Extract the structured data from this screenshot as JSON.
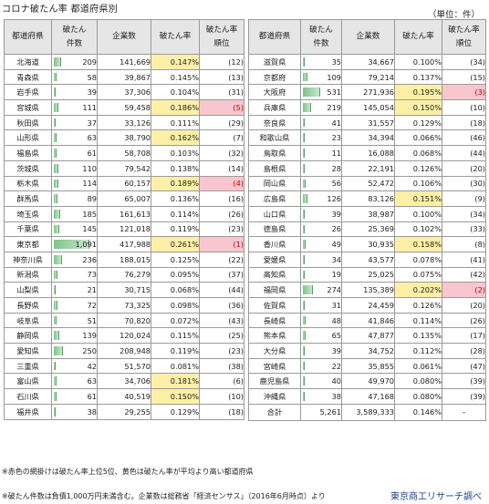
{
  "title": "コロナ破たん率 都道府県別",
  "unit": "（単位：件）",
  "headers": {
    "pref": "都道府県",
    "count_l1": "破たん",
    "count_l2": "件数",
    "companies": "企業数",
    "rate": "破たん率",
    "rank_l1": "破たん率",
    "rank_l2": "順位"
  },
  "colors": {
    "yellow": "#fdf0a6",
    "pink": "#f7c6cf",
    "bar": "#7cc487"
  },
  "left_rows": [
    {
      "pref": "北海道",
      "count": "209",
      "companies": "141,669",
      "rate": "0.147%",
      "rank": "(12)",
      "hl_rate": true,
      "hl_rank": false
    },
    {
      "pref": "青森県",
      "count": "58",
      "companies": "39,867",
      "rate": "0.145%",
      "rank": "(13)",
      "hl_rate": false,
      "hl_rank": false
    },
    {
      "pref": "岩手県",
      "count": "39",
      "companies": "37,306",
      "rate": "0.104%",
      "rank": "(31)",
      "hl_rate": false,
      "hl_rank": false
    },
    {
      "pref": "宮城県",
      "count": "111",
      "companies": "59,458",
      "rate": "0.186%",
      "rank": "(5)",
      "hl_rate": true,
      "hl_rank": true
    },
    {
      "pref": "秋田県",
      "count": "37",
      "companies": "33,126",
      "rate": "0.111%",
      "rank": "(29)",
      "hl_rate": false,
      "hl_rank": false
    },
    {
      "pref": "山形県",
      "count": "63",
      "companies": "38,790",
      "rate": "0.162%",
      "rank": "(7)",
      "hl_rate": true,
      "hl_rank": false
    },
    {
      "pref": "福島県",
      "count": "61",
      "companies": "58,708",
      "rate": "0.103%",
      "rank": "(32)",
      "hl_rate": false,
      "hl_rank": false
    },
    {
      "pref": "茨城県",
      "count": "110",
      "companies": "79,542",
      "rate": "0.138%",
      "rank": "(14)",
      "hl_rate": false,
      "hl_rank": false
    },
    {
      "pref": "栃木県",
      "count": "114",
      "companies": "60,157",
      "rate": "0.189%",
      "rank": "(4)",
      "hl_rate": true,
      "hl_rank": true
    },
    {
      "pref": "群馬県",
      "count": "89",
      "companies": "65,007",
      "rate": "0.136%",
      "rank": "(16)",
      "hl_rate": false,
      "hl_rank": false
    },
    {
      "pref": "埼玉県",
      "count": "185",
      "companies": "161,613",
      "rate": "0.114%",
      "rank": "(26)",
      "hl_rate": false,
      "hl_rank": false
    },
    {
      "pref": "千葉県",
      "count": "145",
      "companies": "121,018",
      "rate": "0.119%",
      "rank": "(23)",
      "hl_rate": false,
      "hl_rank": false
    },
    {
      "pref": "東京都",
      "count": "1,091",
      "companies": "417,988",
      "rate": "0.261%",
      "rank": "(1)",
      "hl_rate": true,
      "hl_rank": true
    },
    {
      "pref": "神奈川県",
      "count": "236",
      "companies": "188,015",
      "rate": "0.125%",
      "rank": "(22)",
      "hl_rate": false,
      "hl_rank": false
    },
    {
      "pref": "新潟県",
      "count": "73",
      "companies": "76,279",
      "rate": "0.095%",
      "rank": "(37)",
      "hl_rate": false,
      "hl_rank": false
    },
    {
      "pref": "山梨県",
      "count": "21",
      "companies": "30,715",
      "rate": "0.068%",
      "rank": "(44)",
      "hl_rate": false,
      "hl_rank": false
    },
    {
      "pref": "長野県",
      "count": "72",
      "companies": "73,325",
      "rate": "0.098%",
      "rank": "(36)",
      "hl_rate": false,
      "hl_rank": false
    },
    {
      "pref": "岐阜県",
      "count": "51",
      "companies": "70,820",
      "rate": "0.072%",
      "rank": "(43)",
      "hl_rate": false,
      "hl_rank": false
    },
    {
      "pref": "静岡県",
      "count": "139",
      "companies": "120,024",
      "rate": "0.115%",
      "rank": "(25)",
      "hl_rate": false,
      "hl_rank": false
    },
    {
      "pref": "愛知県",
      "count": "250",
      "companies": "208,948",
      "rate": "0.119%",
      "rank": "(23)",
      "hl_rate": false,
      "hl_rank": false
    },
    {
      "pref": "三重県",
      "count": "42",
      "companies": "51,570",
      "rate": "0.081%",
      "rank": "(38)",
      "hl_rate": false,
      "hl_rank": false
    },
    {
      "pref": "富山県",
      "count": "63",
      "companies": "34,706",
      "rate": "0.181%",
      "rank": "(6)",
      "hl_rate": true,
      "hl_rank": false
    },
    {
      "pref": "石川県",
      "count": "61",
      "companies": "40,519",
      "rate": "0.150%",
      "rank": "(10)",
      "hl_rate": true,
      "hl_rank": false
    },
    {
      "pref": "福井県",
      "count": "38",
      "companies": "29,255",
      "rate": "0.129%",
      "rank": "(18)",
      "hl_rate": false,
      "hl_rank": false
    }
  ],
  "right_rows": [
    {
      "pref": "滋賀県",
      "count": "35",
      "companies": "34,667",
      "rate": "0.100%",
      "rank": "(34)",
      "hl_rate": false,
      "hl_rank": false
    },
    {
      "pref": "京都府",
      "count": "109",
      "companies": "79,214",
      "rate": "0.137%",
      "rank": "(15)",
      "hl_rate": false,
      "hl_rank": false
    },
    {
      "pref": "大阪府",
      "count": "531",
      "companies": "271,936",
      "rate": "0.195%",
      "rank": "(3)",
      "hl_rate": true,
      "hl_rank": true
    },
    {
      "pref": "兵庫県",
      "count": "219",
      "companies": "145,054",
      "rate": "0.150%",
      "rank": "(10)",
      "hl_rate": true,
      "hl_rank": false
    },
    {
      "pref": "奈良県",
      "count": "41",
      "companies": "31,557",
      "rate": "0.129%",
      "rank": "(18)",
      "hl_rate": false,
      "hl_rank": false
    },
    {
      "pref": "和歌山県",
      "count": "23",
      "companies": "34,394",
      "rate": "0.066%",
      "rank": "(46)",
      "hl_rate": false,
      "hl_rank": false
    },
    {
      "pref": "鳥取県",
      "count": "11",
      "companies": "16,088",
      "rate": "0.068%",
      "rank": "(44)",
      "hl_rate": false,
      "hl_rank": false
    },
    {
      "pref": "島根県",
      "count": "28",
      "companies": "22,191",
      "rate": "0.126%",
      "rank": "(20)",
      "hl_rate": false,
      "hl_rank": false
    },
    {
      "pref": "岡山県",
      "count": "56",
      "companies": "52,472",
      "rate": "0.106%",
      "rank": "(30)",
      "hl_rate": false,
      "hl_rank": false
    },
    {
      "pref": "広島県",
      "count": "126",
      "companies": "83,126",
      "rate": "0.151%",
      "rank": "(9)",
      "hl_rate": true,
      "hl_rank": false
    },
    {
      "pref": "山口県",
      "count": "39",
      "companies": "38,987",
      "rate": "0.100%",
      "rank": "(34)",
      "hl_rate": false,
      "hl_rank": false
    },
    {
      "pref": "徳島県",
      "count": "26",
      "companies": "25,369",
      "rate": "0.102%",
      "rank": "(33)",
      "hl_rate": false,
      "hl_rank": false
    },
    {
      "pref": "香川県",
      "count": "49",
      "companies": "30,935",
      "rate": "0.158%",
      "rank": "(8)",
      "hl_rate": true,
      "hl_rank": false
    },
    {
      "pref": "愛媛県",
      "count": "34",
      "companies": "43,577",
      "rate": "0.078%",
      "rank": "(41)",
      "hl_rate": false,
      "hl_rank": false
    },
    {
      "pref": "高知県",
      "count": "19",
      "companies": "25,025",
      "rate": "0.075%",
      "rank": "(42)",
      "hl_rate": false,
      "hl_rank": false
    },
    {
      "pref": "福岡県",
      "count": "274",
      "companies": "135,389",
      "rate": "0.202%",
      "rank": "(2)",
      "hl_rate": true,
      "hl_rank": true
    },
    {
      "pref": "佐賀県",
      "count": "31",
      "companies": "24,459",
      "rate": "0.126%",
      "rank": "(20)",
      "hl_rate": false,
      "hl_rank": false
    },
    {
      "pref": "長崎県",
      "count": "48",
      "companies": "41,846",
      "rate": "0.114%",
      "rank": "(26)",
      "hl_rate": false,
      "hl_rank": false
    },
    {
      "pref": "熊本県",
      "count": "65",
      "companies": "47,877",
      "rate": "0.135%",
      "rank": "(17)",
      "hl_rate": false,
      "hl_rank": false
    },
    {
      "pref": "大分県",
      "count": "39",
      "companies": "34,752",
      "rate": "0.112%",
      "rank": "(28)",
      "hl_rate": false,
      "hl_rank": false
    },
    {
      "pref": "宮崎県",
      "count": "22",
      "companies": "35,855",
      "rate": "0.061%",
      "rank": "(47)",
      "hl_rate": false,
      "hl_rank": false
    },
    {
      "pref": "鹿児島県",
      "count": "40",
      "companies": "49,970",
      "rate": "0.080%",
      "rank": "(39)",
      "hl_rate": false,
      "hl_rank": false
    },
    {
      "pref": "沖縄県",
      "count": "38",
      "companies": "47,168",
      "rate": "0.080%",
      "rank": "(39)",
      "hl_rate": false,
      "hl_rank": false
    }
  ],
  "total": {
    "label": "合計",
    "count": "5,261",
    "companies": "3,589,333",
    "rate": "0.146%",
    "rank": "–"
  },
  "note1": "※赤色の網掛けは破たん率上位5位、黄色は破たん率が平均より高い都道府県",
  "note2": "※破たん件数は負債1,000万円未満含む。企業数は総務省「経済センサス」（2016年6月時点）より",
  "source": "東京商工リサーチ調べ"
}
